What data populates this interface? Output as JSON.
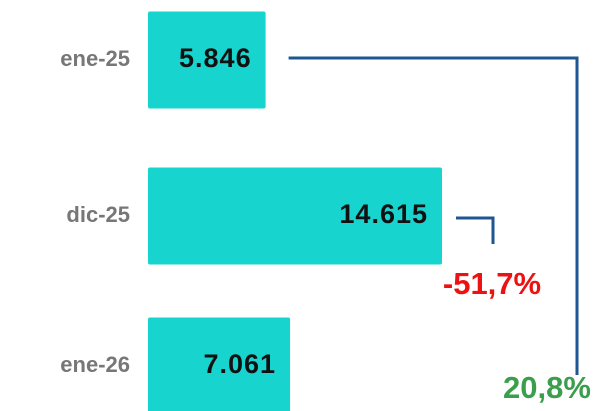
{
  "chart_data": {
    "type": "bar",
    "orientation": "horizontal",
    "color": "#17d4cf",
    "categories": [
      "ene-25",
      "dic-25",
      "ene-26"
    ],
    "values": [
      5846,
      14615,
      7061
    ],
    "value_labels": [
      "5.846",
      "14.615",
      "7.061"
    ],
    "annotations": [
      {
        "text": "-51,7%",
        "color": "#ee1111"
      },
      {
        "text": "20,8%",
        "color": "#3a9e4c"
      }
    ]
  }
}
